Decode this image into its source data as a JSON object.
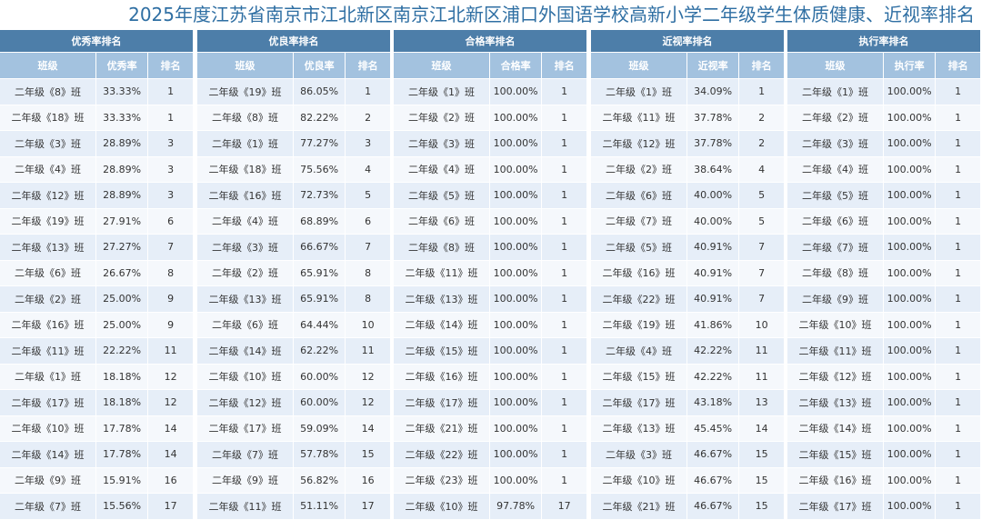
{
  "title": "2025年度江苏省南京市江北新区南京江北新区浦口外国语学校高新小学二年级学生体质健康、近视率排名",
  "panels": [
    {
      "header": "优秀率排名",
      "columns": [
        "班级",
        "优秀率",
        "排名"
      ],
      "rows": [
        [
          "二年级《8》班",
          "33.33%",
          "1"
        ],
        [
          "二年级《18》班",
          "33.33%",
          "1"
        ],
        [
          "二年级《3》班",
          "28.89%",
          "3"
        ],
        [
          "二年级《4》班",
          "28.89%",
          "3"
        ],
        [
          "二年级《12》班",
          "28.89%",
          "3"
        ],
        [
          "二年级《19》班",
          "27.91%",
          "6"
        ],
        [
          "二年级《13》班",
          "27.27%",
          "7"
        ],
        [
          "二年级《6》班",
          "26.67%",
          "8"
        ],
        [
          "二年级《2》班",
          "25.00%",
          "9"
        ],
        [
          "二年级《16》班",
          "25.00%",
          "9"
        ],
        [
          "二年级《11》班",
          "22.22%",
          "11"
        ],
        [
          "二年级《1》班",
          "18.18%",
          "12"
        ],
        [
          "二年级《17》班",
          "18.18%",
          "12"
        ],
        [
          "二年级《10》班",
          "17.78%",
          "14"
        ],
        [
          "二年级《14》班",
          "17.78%",
          "14"
        ],
        [
          "二年级《9》班",
          "15.91%",
          "16"
        ],
        [
          "二年级《7》班",
          "15.56%",
          "17"
        ]
      ]
    },
    {
      "header": "优良率排名",
      "columns": [
        "班级",
        "优良率",
        "排名"
      ],
      "rows": [
        [
          "二年级《19》班",
          "86.05%",
          "1"
        ],
        [
          "二年级《8》班",
          "82.22%",
          "2"
        ],
        [
          "二年级《1》班",
          "77.27%",
          "3"
        ],
        [
          "二年级《18》班",
          "75.56%",
          "4"
        ],
        [
          "二年级《16》班",
          "72.73%",
          "5"
        ],
        [
          "二年级《4》班",
          "68.89%",
          "6"
        ],
        [
          "二年级《3》班",
          "66.67%",
          "7"
        ],
        [
          "二年级《2》班",
          "65.91%",
          "8"
        ],
        [
          "二年级《13》班",
          "65.91%",
          "8"
        ],
        [
          "二年级《6》班",
          "64.44%",
          "10"
        ],
        [
          "二年级《14》班",
          "62.22%",
          "11"
        ],
        [
          "二年级《10》班",
          "60.00%",
          "12"
        ],
        [
          "二年级《12》班",
          "60.00%",
          "12"
        ],
        [
          "二年级《17》班",
          "59.09%",
          "14"
        ],
        [
          "二年级《7》班",
          "57.78%",
          "15"
        ],
        [
          "二年级《9》班",
          "56.82%",
          "16"
        ],
        [
          "二年级《11》班",
          "51.11%",
          "17"
        ]
      ]
    },
    {
      "header": "合格率排名",
      "columns": [
        "班级",
        "合格率",
        "排名"
      ],
      "rows": [
        [
          "二年级《1》班",
          "100.00%",
          "1"
        ],
        [
          "二年级《2》班",
          "100.00%",
          "1"
        ],
        [
          "二年级《3》班",
          "100.00%",
          "1"
        ],
        [
          "二年级《4》班",
          "100.00%",
          "1"
        ],
        [
          "二年级《5》班",
          "100.00%",
          "1"
        ],
        [
          "二年级《6》班",
          "100.00%",
          "1"
        ],
        [
          "二年级《8》班",
          "100.00%",
          "1"
        ],
        [
          "二年级《11》班",
          "100.00%",
          "1"
        ],
        [
          "二年级《13》班",
          "100.00%",
          "1"
        ],
        [
          "二年级《14》班",
          "100.00%",
          "1"
        ],
        [
          "二年级《15》班",
          "100.00%",
          "1"
        ],
        [
          "二年级《16》班",
          "100.00%",
          "1"
        ],
        [
          "二年级《17》班",
          "100.00%",
          "1"
        ],
        [
          "二年级《21》班",
          "100.00%",
          "1"
        ],
        [
          "二年级《22》班",
          "100.00%",
          "1"
        ],
        [
          "二年级《23》班",
          "100.00%",
          "1"
        ],
        [
          "二年级《10》班",
          "97.78%",
          "17"
        ]
      ]
    },
    {
      "header": "近视率排名",
      "columns": [
        "班级",
        "近视率",
        "排名"
      ],
      "rows": [
        [
          "二年级《1》班",
          "34.09%",
          "1"
        ],
        [
          "二年级《11》班",
          "37.78%",
          "2"
        ],
        [
          "二年级《12》班",
          "37.78%",
          "2"
        ],
        [
          "二年级《2》班",
          "38.64%",
          "4"
        ],
        [
          "二年级《6》班",
          "40.00%",
          "5"
        ],
        [
          "二年级《7》班",
          "40.00%",
          "5"
        ],
        [
          "二年级《5》班",
          "40.91%",
          "7"
        ],
        [
          "二年级《16》班",
          "40.91%",
          "7"
        ],
        [
          "二年级《22》班",
          "40.91%",
          "7"
        ],
        [
          "二年级《19》班",
          "41.86%",
          "10"
        ],
        [
          "二年级《4》班",
          "42.22%",
          "11"
        ],
        [
          "二年级《15》班",
          "42.22%",
          "11"
        ],
        [
          "二年级《17》班",
          "43.18%",
          "13"
        ],
        [
          "二年级《13》班",
          "45.45%",
          "14"
        ],
        [
          "二年级《3》班",
          "46.67%",
          "15"
        ],
        [
          "二年级《10》班",
          "46.67%",
          "15"
        ],
        [
          "二年级《21》班",
          "46.67%",
          "15"
        ]
      ]
    },
    {
      "header": "执行率排名",
      "columns": [
        "班级",
        "执行率",
        "排名"
      ],
      "rows": [
        [
          "二年级《1》班",
          "100.00%",
          "1"
        ],
        [
          "二年级《2》班",
          "100.00%",
          "1"
        ],
        [
          "二年级《3》班",
          "100.00%",
          "1"
        ],
        [
          "二年级《4》班",
          "100.00%",
          "1"
        ],
        [
          "二年级《5》班",
          "100.00%",
          "1"
        ],
        [
          "二年级《6》班",
          "100.00%",
          "1"
        ],
        [
          "二年级《7》班",
          "100.00%",
          "1"
        ],
        [
          "二年级《8》班",
          "100.00%",
          "1"
        ],
        [
          "二年级《9》班",
          "100.00%",
          "1"
        ],
        [
          "二年级《10》班",
          "100.00%",
          "1"
        ],
        [
          "二年级《11》班",
          "100.00%",
          "1"
        ],
        [
          "二年级《12》班",
          "100.00%",
          "1"
        ],
        [
          "二年级《13》班",
          "100.00%",
          "1"
        ],
        [
          "二年级《14》班",
          "100.00%",
          "1"
        ],
        [
          "二年级《15》班",
          "100.00%",
          "1"
        ],
        [
          "二年级《16》班",
          "100.00%",
          "1"
        ],
        [
          "二年级《17》班",
          "100.00%",
          "1"
        ]
      ]
    }
  ]
}
